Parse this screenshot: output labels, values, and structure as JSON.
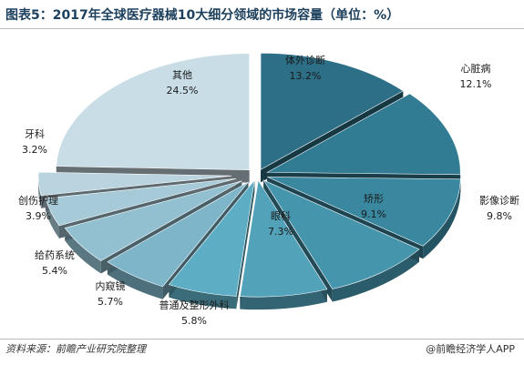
{
  "title": "图表5：2017年全球医疗器械10大细分领域的市场容量（单位：%）",
  "source": "资料来源：前瞻产业研究院整理",
  "brand": "@前瞻经济学人APP",
  "chart_data": {
    "type": "pie",
    "title": "图表5：2017年全球医疗器械10大细分领域的市场容量（单位：%）",
    "unit": "%",
    "slices": [
      {
        "name": "体外诊断",
        "value": 13.2,
        "label": "13.2%",
        "color": "#2c6f86"
      },
      {
        "name": "心脏病",
        "value": 12.1,
        "label": "12.1%",
        "color": "#327c93"
      },
      {
        "name": "影像诊断",
        "value": 9.8,
        "label": "9.8%",
        "color": "#3a88a0"
      },
      {
        "name": "矫形",
        "value": 9.1,
        "label": "9.1%",
        "color": "#4595ad"
      },
      {
        "name": "眼科",
        "value": 7.3,
        "label": "7.3%",
        "color": "#52a2b9"
      },
      {
        "name": "普通及整形外科",
        "value": 5.8,
        "label": "5.8%",
        "color": "#5daec4"
      },
      {
        "name": "内窥镜",
        "value": 5.7,
        "label": "5.7%",
        "color": "#7eb5c9"
      },
      {
        "name": "给药系统",
        "value": 5.4,
        "label": "5.4%",
        "color": "#93c0d1"
      },
      {
        "name": "创伤护理",
        "value": 3.9,
        "label": "3.9%",
        "color": "#a7cad8"
      },
      {
        "name": "牙科",
        "value": 3.2,
        "label": "3.2%",
        "color": "#b9d4df"
      },
      {
        "name": "其他",
        "value": 24.5,
        "label": "24.5%",
        "color": "#c9dde6"
      }
    ]
  }
}
